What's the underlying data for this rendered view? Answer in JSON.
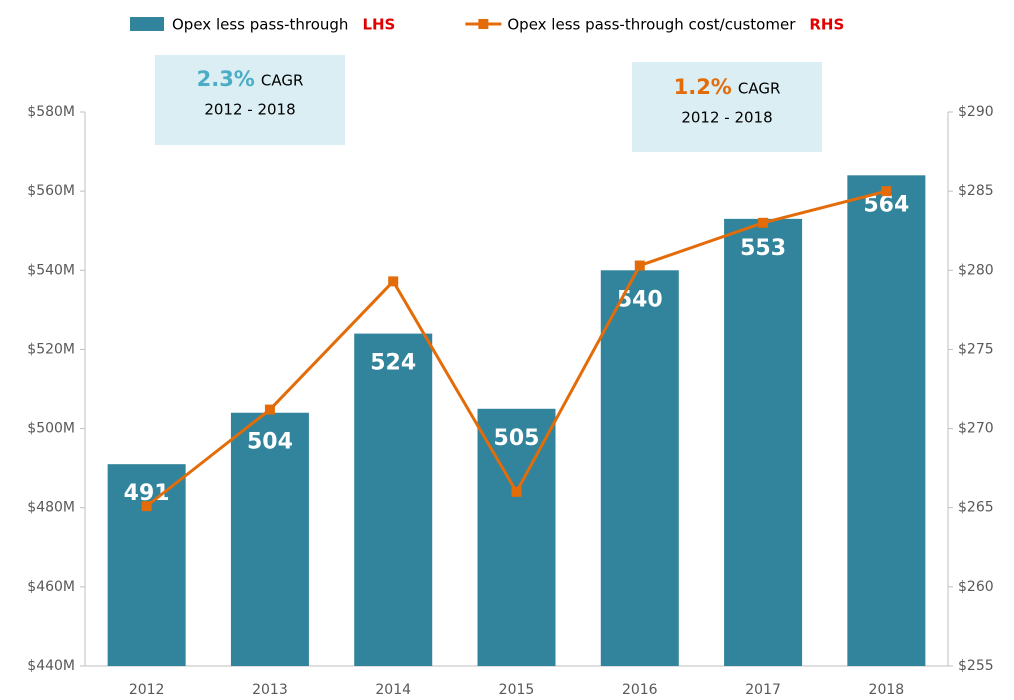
{
  "chart_data": {
    "type": "bar-line",
    "categories": [
      "2012",
      "2013",
      "2014",
      "2015",
      "2016",
      "2017",
      "2018"
    ],
    "series": [
      {
        "name": "Opex less pass-through",
        "axis_tag": "LHS",
        "type": "bar",
        "color": "#31849b",
        "values": [
          491,
          504,
          524,
          505,
          540,
          553,
          564
        ]
      },
      {
        "name": "Opex less pass-through cost/customer",
        "axis_tag": "RHS",
        "type": "line",
        "axis": "y2",
        "color": "#e36c09",
        "values": [
          265.1,
          271.2,
          279.3,
          266.0,
          280.3,
          283.0,
          285.0
        ]
      }
    ],
    "ylim": [
      440,
      580
    ],
    "yticks": [
      {
        "value": 440,
        "label": "$440M"
      },
      {
        "value": 460,
        "label": "$460M"
      },
      {
        "value": 480,
        "label": "$480M"
      },
      {
        "value": 500,
        "label": "$500M"
      },
      {
        "value": 520,
        "label": "$520M"
      },
      {
        "value": 540,
        "label": "$540M"
      },
      {
        "value": 560,
        "label": "$560M"
      },
      {
        "value": 580,
        "label": "$580M"
      }
    ],
    "y2lim": [
      255,
      290
    ],
    "y2ticks": [
      {
        "value": 255,
        "label": "$255"
      },
      {
        "value": 260,
        "label": "$260"
      },
      {
        "value": 265,
        "label": "$265"
      },
      {
        "value": 270,
        "label": "$270"
      },
      {
        "value": 275,
        "label": "$275"
      },
      {
        "value": 280,
        "label": "$280"
      },
      {
        "value": 285,
        "label": "$285"
      },
      {
        "value": 290,
        "label": "$290"
      }
    ],
    "annotations": [
      {
        "value": "2.3%",
        "text": "CAGR",
        "period": "2012 - 2018",
        "color": "#4bacc6"
      },
      {
        "value": "1.2%",
        "text": "CAGR",
        "period": "2012 - 2018",
        "color": "#e36c09"
      }
    ]
  }
}
